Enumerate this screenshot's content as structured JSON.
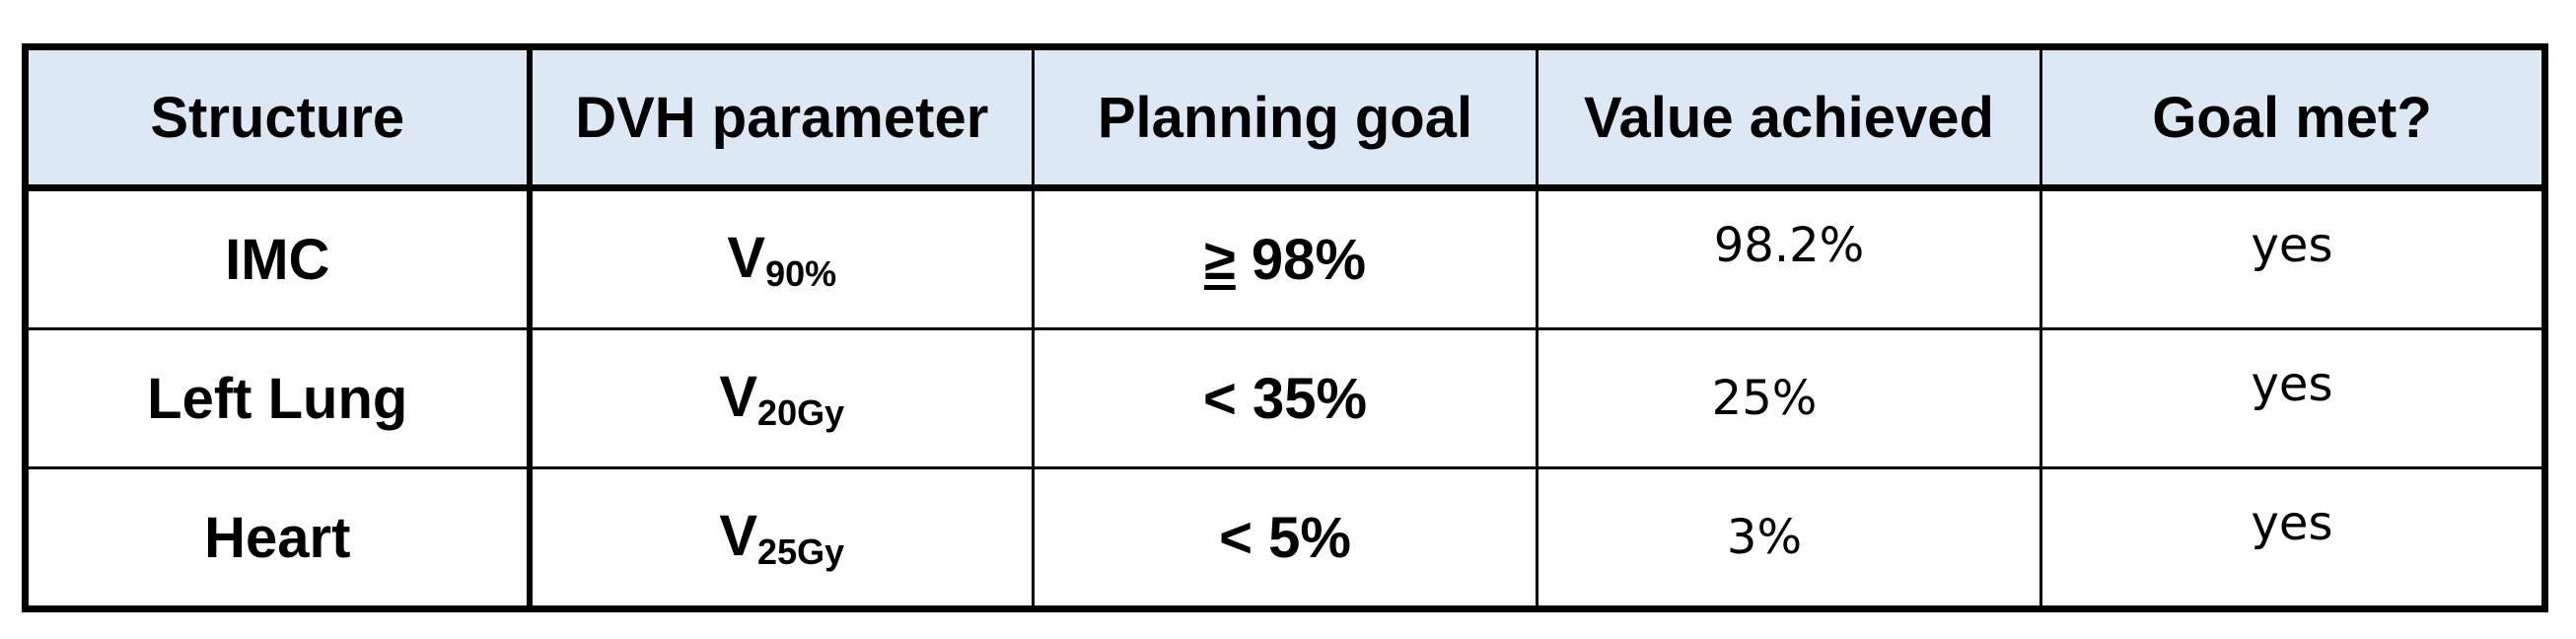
{
  "table": {
    "headers": [
      "Structure",
      "DVH parameter",
      "Planning goal",
      "Value achieved",
      "Goal met?"
    ],
    "rows": [
      {
        "structure": "IMC",
        "param_main": "V",
        "param_sub": "90%",
        "goal_op": "≥",
        "goal_value": " 98%",
        "value": "98.2%",
        "met": "yes"
      },
      {
        "structure": "Left Lung",
        "param_main": "V",
        "param_sub": "20Gy",
        "goal_op": "<",
        "goal_value": " 35%",
        "value": "25%",
        "met": "yes"
      },
      {
        "structure": "Heart",
        "param_main": "V",
        "param_sub": "25Gy",
        "goal_op": "<",
        "goal_value": " 5%",
        "value": "3%",
        "met": "yes"
      }
    ]
  }
}
